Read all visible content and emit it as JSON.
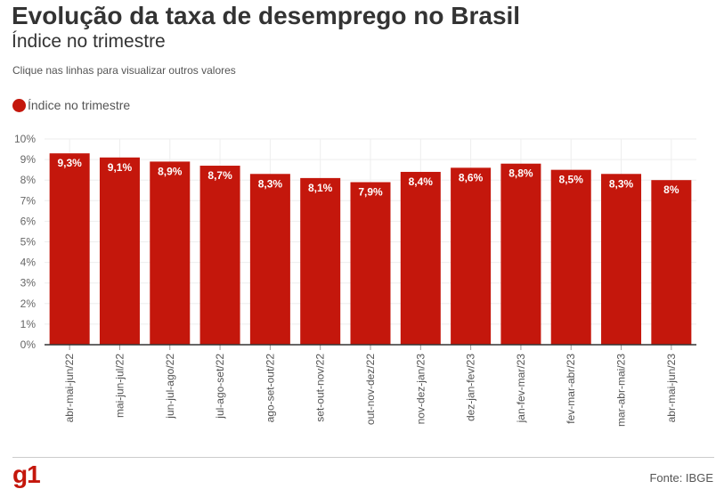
{
  "title": "Evolução da taxa de desemprego no Brasil",
  "subtitle": "Índice no trimestre",
  "hint": "Clique nas linhas para visualizar outros valores",
  "legend_label": "Índice no trimestre",
  "source": "Fonte: IBGE",
  "logo": "g1",
  "colors": {
    "bar": "#c4170c",
    "text": "#333333",
    "grid": "#eeeeee"
  },
  "chart_data": {
    "type": "bar",
    "categories": [
      "abr-mai-jun/22",
      "mai-jun-jul/22",
      "jun-jul-ago/22",
      "jul-ago-set/22",
      "ago-set-out/22",
      "set-out-nov/22",
      "out-nov-dez/22",
      "nov-dez-jan/23",
      "dez-jan-fev/23",
      "jan-fev-mar/23",
      "fev-mar-abr/23",
      "mar-abr-mai/23",
      "abr-mai-jun/23"
    ],
    "values": [
      9.3,
      9.1,
      8.9,
      8.7,
      8.3,
      8.1,
      7.9,
      8.4,
      8.6,
      8.8,
      8.5,
      8.3,
      8.0
    ],
    "value_labels": [
      "9,3%",
      "9,1%",
      "8,9%",
      "8,7%",
      "8,3%",
      "8,1%",
      "7,9%",
      "8,4%",
      "8,6%",
      "8,8%",
      "8,5%",
      "8,3%",
      "8%"
    ],
    "y_ticks": [
      0,
      1,
      2,
      3,
      4,
      5,
      6,
      7,
      8,
      9,
      10
    ],
    "y_tick_labels": [
      "0%",
      "1%",
      "2%",
      "3%",
      "4%",
      "5%",
      "6%",
      "7%",
      "8%",
      "9%",
      "10%"
    ],
    "ylim": [
      0,
      10
    ],
    "grid": true,
    "legend_position": "top-left"
  }
}
